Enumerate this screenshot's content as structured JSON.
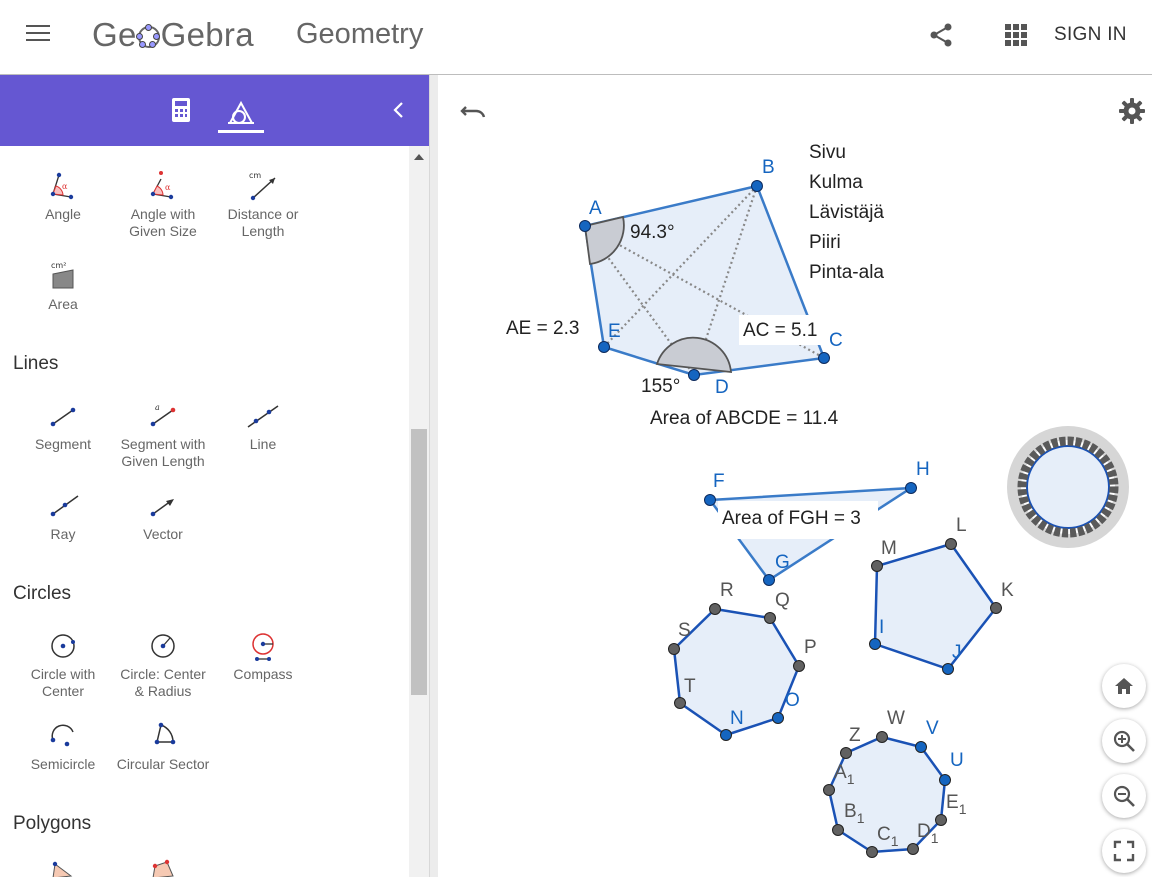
{
  "header": {
    "logo_left": "Ge",
    "logo_right": "Gebra",
    "app_title": "Geometry",
    "share_icon": "share-icon",
    "apps_icon": "apps-grid-icon",
    "sign_in": "SIGN IN"
  },
  "panel": {
    "tabs": [
      {
        "name": "calculator",
        "icon": "calculator-icon"
      },
      {
        "name": "tools",
        "icon": "geometry-tools-icon",
        "active": true
      }
    ],
    "collapse_icon": "chevron-left-icon",
    "accent": "#6557d2",
    "measure_tools": [
      {
        "label1": "Angle",
        "label2": ""
      },
      {
        "label1": "Angle with",
        "label2": "Given Size"
      },
      {
        "label1": "Distance or",
        "label2": "Length"
      },
      {
        "label1": "Area",
        "label2": ""
      }
    ],
    "categories": {
      "lines": "Lines",
      "circles": "Circles",
      "polygons": "Polygons"
    },
    "line_tools": [
      {
        "label1": "Segment",
        "label2": ""
      },
      {
        "label1": "Segment with",
        "label2": "Given Length"
      },
      {
        "label1": "Line",
        "label2": ""
      },
      {
        "label1": "Ray",
        "label2": ""
      },
      {
        "label1": "Vector",
        "label2": ""
      }
    ],
    "circle_tools": [
      {
        "label1": "Circle with",
        "label2": "Center"
      },
      {
        "label1": "Circle: Center",
        "label2": "& Radius"
      },
      {
        "label1": "Compass",
        "label2": ""
      },
      {
        "label1": "Semicircle",
        "label2": ""
      },
      {
        "label1": "Circular Sector",
        "label2": ""
      }
    ],
    "icon_text": {
      "cm": "cm",
      "cm2": "cm²",
      "alpha": "α",
      "a": "a"
    }
  },
  "graphics": {
    "undo_icon": "undo-icon",
    "settings_icon": "gear-icon",
    "checkbox_labels": [
      "Sivu",
      "Kulma",
      "Lävistäjä",
      "Piiri",
      "Pinta-ala"
    ],
    "pentagon_points": [
      "A",
      "B",
      "C",
      "D",
      "E"
    ],
    "angle_A": "94.3°",
    "angle_D": "155°",
    "ae_label": "AE = 2.3",
    "ac_label": "AC = 5.1",
    "area_abcde": "Area of  ABCDE = 11.4",
    "triangle_points": [
      "F",
      "G",
      "H"
    ],
    "area_fgh": "Area of  FGH = 3",
    "pentagon2_points": [
      "I",
      "J",
      "K",
      "L",
      "M"
    ],
    "octagon_points": [
      "N",
      "O",
      "P",
      "Q",
      "R",
      "S",
      "T"
    ],
    "nonagon_points": [
      "U",
      "V",
      "W",
      "Z",
      "A",
      "B",
      "C",
      "D",
      "E"
    ],
    "subscript_1": "1",
    "fab_icons": [
      "home-icon",
      "zoom-in-icon",
      "zoom-out-icon",
      "fullscreen-icon"
    ],
    "colors": {
      "blue": "#1565c0",
      "line": "#3a7bc8",
      "fill": "#e6eef9",
      "gray_point": "#616161"
    }
  }
}
